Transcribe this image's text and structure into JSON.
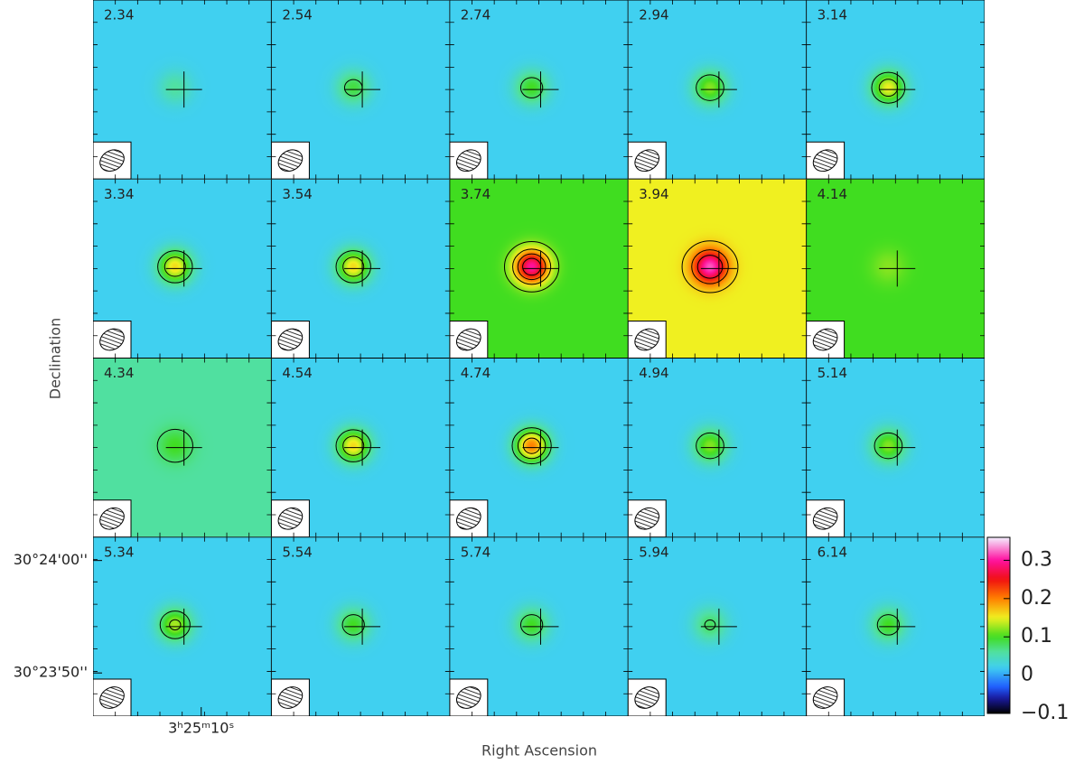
{
  "chart_data": {
    "type": "channel_map",
    "x_label": "Right Ascension",
    "y_label": "Declination",
    "xlim": [
      12310.74,
      12309.52
    ],
    "xticks": [
      {
        "value": 12310,
        "label": "3ʰ25ᵐ10ˢ"
      }
    ],
    "ylim": [
      109426.16,
      109442.08
    ],
    "yticks": [
      {
        "value": 109440,
        "label": "30°24'00''"
      },
      {
        "value": 109430,
        "label": "30°23'50''"
      }
    ],
    "panels": [
      {
        "label": 2.34,
        "background": 0.02,
        "peak": 0.06
      },
      {
        "label": 2.54,
        "background": 0.02,
        "peak": 0.09
      },
      {
        "label": 2.74,
        "background": 0.02,
        "peak": 0.1
      },
      {
        "label": 2.94,
        "background": 0.02,
        "peak": 0.12
      },
      {
        "label": 3.14,
        "background": 0.02,
        "peak": 0.15
      },
      {
        "label": 3.34,
        "background": 0.02,
        "peak": 0.16
      },
      {
        "label": 3.54,
        "background": 0.02,
        "peak": 0.16
      },
      {
        "label": 3.74,
        "background": 0.1,
        "peak": 0.3
      },
      {
        "label": 3.94,
        "background": 0.15,
        "peak": 0.32
      },
      {
        "label": 4.14,
        "background": 0.1,
        "peak": 0.12
      },
      {
        "label": 4.34,
        "background": 0.06,
        "peak": 0.1
      },
      {
        "label": 4.54,
        "background": 0.02,
        "peak": 0.16
      },
      {
        "label": 4.74,
        "background": 0.02,
        "peak": 0.2
      },
      {
        "label": 4.94,
        "background": 0.02,
        "peak": 0.12
      },
      {
        "label": 5.14,
        "background": 0.02,
        "peak": 0.12
      },
      {
        "label": 5.34,
        "background": 0.02,
        "peak": 0.13
      },
      {
        "label": 5.54,
        "background": 0.02,
        "peak": 0.1
      },
      {
        "label": 5.74,
        "background": 0.02,
        "peak": 0.1
      },
      {
        "label": 5.94,
        "background": 0.02,
        "peak": 0.08
      },
      {
        "label": 6.14,
        "background": 0.02,
        "peak": 0.1
      }
    ],
    "contour_levels": [
      0.075,
      0.12,
      0.165,
      0.21,
      0.255
    ],
    "colorbar_lim": [
      -0.1,
      0.36
    ],
    "colorbar_ticks": [
      {
        "value": -0.1,
        "label": "−0.1"
      },
      0,
      0.1,
      0.2,
      0.3
    ],
    "colormap": [
      {
        "value": -0.1,
        "color": "#000000"
      },
      {
        "value": -0.06,
        "color": "#1a1aa0"
      },
      {
        "value": -0.03,
        "color": "#2060ff"
      },
      {
        "value": 0.02,
        "color": "#40d0f0"
      },
      {
        "value": 0.06,
        "color": "#50e0a0"
      },
      {
        "value": 0.1,
        "color": "#40dd20"
      },
      {
        "value": 0.15,
        "color": "#f0f020"
      },
      {
        "value": 0.2,
        "color": "#ff8000"
      },
      {
        "value": 0.25,
        "color": "#f01010"
      },
      {
        "value": 0.3,
        "color": "#ff10a0"
      },
      {
        "value": 0.36,
        "color": "#f4f0ff"
      }
    ]
  }
}
